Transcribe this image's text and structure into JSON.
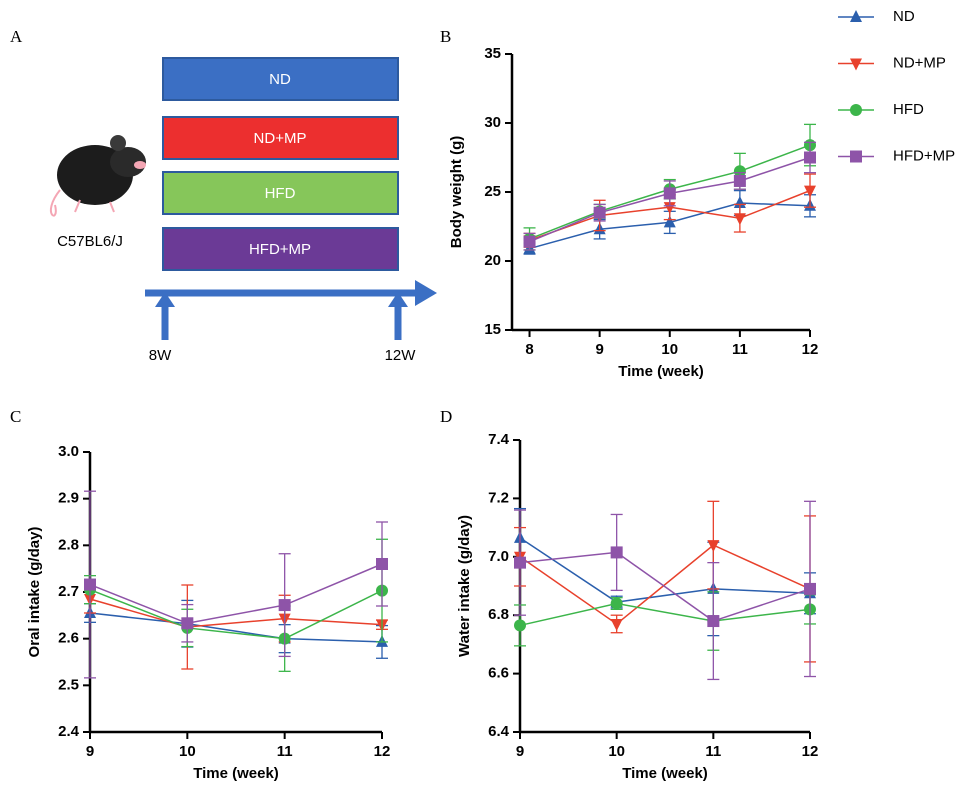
{
  "panel_a": {
    "label": "A",
    "groups": [
      "ND",
      "ND+MP",
      "HFD",
      "HFD+MP"
    ],
    "strain": "C57BL6/J",
    "timepoints": [
      "8W",
      "12W"
    ]
  },
  "chart_data": [
    {
      "type": "line",
      "label": "B",
      "y_label": "Body weight (g)",
      "x_label": "Time (week)",
      "x": [
        8,
        9,
        10,
        11,
        12
      ],
      "xlim": [
        7.75,
        12
      ],
      "xticks": [
        8,
        9,
        10,
        11,
        12
      ],
      "ylim": [
        15,
        35
      ],
      "yticks": [
        15,
        20,
        25,
        30,
        35
      ],
      "legend": "top-right",
      "series": [
        {
          "name": "ND",
          "color": "#2b5fad",
          "marker": "triangle-up",
          "values": [
            20.9,
            22.3,
            22.8,
            24.2,
            24.0
          ],
          "error": [
            0.4,
            0.7,
            0.8,
            0.9,
            0.8
          ]
        },
        {
          "name": "ND+MP",
          "color": "#e8412c",
          "marker": "triangle-down",
          "values": [
            21.5,
            23.3,
            23.9,
            23.1,
            25.1
          ],
          "error": [
            0.5,
            1.1,
            0.9,
            1.0,
            1.2
          ]
        },
        {
          "name": "HFD",
          "color": "#3cb54a",
          "marker": "circle",
          "values": [
            21.6,
            23.6,
            25.2,
            26.5,
            28.4
          ],
          "error": [
            0.8,
            0.5,
            0.7,
            1.3,
            1.5
          ]
        },
        {
          "name": "HFD+MP",
          "color": "#8e54a8",
          "marker": "square",
          "values": [
            21.4,
            23.5,
            24.9,
            25.8,
            27.5
          ],
          "error": [
            0.6,
            0.6,
            0.9,
            0.6,
            1.1
          ]
        }
      ]
    },
    {
      "type": "line",
      "label": "C",
      "y_label": "Oral intake (g/day)",
      "x_label": "Time (week)",
      "x": [
        9,
        10,
        11,
        12
      ],
      "xlim": [
        9,
        12
      ],
      "xticks": [
        9,
        10,
        11,
        12
      ],
      "ylim": [
        2.4,
        3.0
      ],
      "yticks": [
        2.4,
        2.5,
        2.6,
        2.7,
        2.8,
        2.9,
        {
          "value": 3.0,
          "label": "3.0"
        }
      ],
      "series": [
        {
          "color": "#2b5fad",
          "marker": "triangle-up",
          "values": [
            2.655,
            2.632,
            2.6,
            2.593
          ],
          "error": [
            0.02,
            0.05,
            0.03,
            0.035
          ]
        },
        {
          "color": "#e8412c",
          "marker": "triangle-down",
          "values": [
            2.685,
            2.625,
            2.643,
            2.63
          ],
          "error": [
            0.03,
            0.09,
            0.05,
            0.01
          ]
        },
        {
          "color": "#3cb54a",
          "marker": "circle",
          "values": [
            2.705,
            2.623,
            2.6,
            2.703
          ],
          "error": [
            0.03,
            0.04,
            0.07,
            0.11
          ]
        },
        {
          "color": "#8e54a8",
          "marker": "square",
          "values": [
            2.716,
            2.633,
            2.672,
            2.76
          ],
          "error": [
            0.2,
            0.04,
            0.11,
            0.09
          ]
        }
      ]
    },
    {
      "type": "line",
      "label": "D",
      "y_label": "Water intake (g/day)",
      "x_label": "Time (week)",
      "x": [
        9,
        10,
        11,
        12
      ],
      "xlim": [
        9,
        12
      ],
      "xticks": [
        9,
        10,
        11,
        12
      ],
      "ylim": [
        6.4,
        7.4
      ],
      "yticks": [
        6.4,
        6.6,
        6.8,
        {
          "value": 7.0,
          "label": "7.0"
        },
        7.2,
        7.4
      ],
      "series": [
        {
          "color": "#2b5fad",
          "marker": "triangle-up",
          "values": [
            7.065,
            6.845,
            6.89,
            6.875
          ],
          "error": [
            0.1,
            0.02,
            0.16,
            0.07
          ]
        },
        {
          "color": "#e8412c",
          "marker": "triangle-down",
          "values": [
            7.0,
            6.77,
            7.04,
            6.89
          ],
          "error": [
            0.1,
            0.03,
            0.15,
            0.25
          ]
        },
        {
          "color": "#3cb54a",
          "marker": "circle",
          "values": [
            6.765,
            6.84,
            6.78,
            6.82
          ],
          "error": [
            0.07,
            0.02,
            0.1,
            0.05
          ]
        },
        {
          "color": "#8e54a8",
          "marker": "square",
          "values": [
            6.98,
            7.015,
            6.78,
            6.89
          ],
          "error": [
            0.18,
            0.13,
            0.2,
            0.3
          ]
        }
      ]
    }
  ]
}
